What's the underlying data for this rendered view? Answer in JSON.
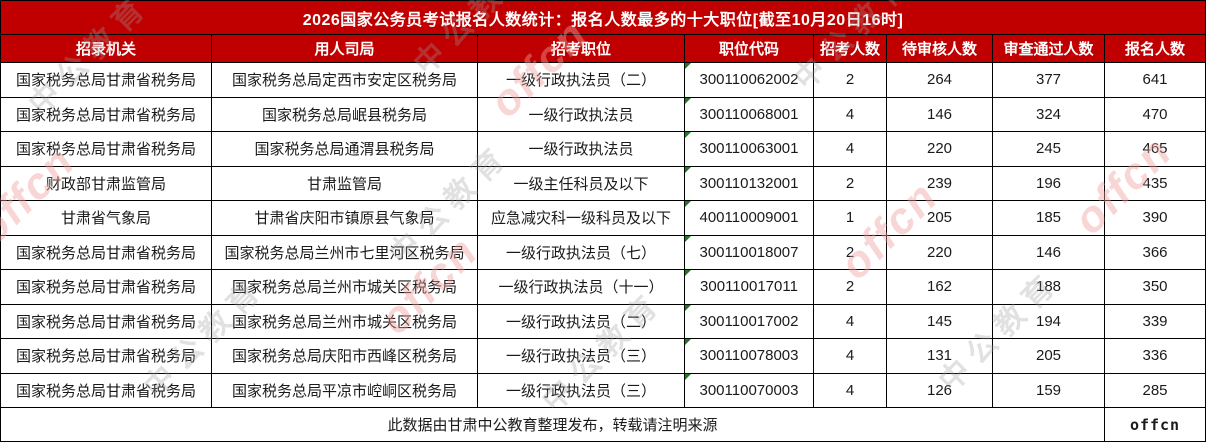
{
  "table": {
    "title": "2026国家公务员考试报名人数统计：报名人数最多的十大职位[截至10月20日16时]",
    "columns": [
      "招录机关",
      "用人司局",
      "招考职位",
      "职位代码",
      "招考人数",
      "待审核人数",
      "审查通过人数",
      "报名人数"
    ],
    "rows": [
      {
        "agency": "国家税务总局甘肃省税务局",
        "bureau": "国家税务总局定西市安定区税务局",
        "position": "一级行政执法员（二）",
        "code": "300110062002",
        "recruit": "2",
        "pending": "264",
        "approved": "377",
        "applied": "641"
      },
      {
        "agency": "国家税务总局甘肃省税务局",
        "bureau": "国家税务总局岷县税务局",
        "position": "一级行政执法员",
        "code": "300110068001",
        "recruit": "4",
        "pending": "146",
        "approved": "324",
        "applied": "470"
      },
      {
        "agency": "国家税务总局甘肃省税务局",
        "bureau": "国家税务总局通渭县税务局",
        "position": "一级行政执法员",
        "code": "300110063001",
        "recruit": "4",
        "pending": "220",
        "approved": "245",
        "applied": "465"
      },
      {
        "agency": "财政部甘肃监管局",
        "bureau": "甘肃监管局",
        "position": "一级主任科员及以下",
        "code": "300110132001",
        "recruit": "2",
        "pending": "239",
        "approved": "196",
        "applied": "435"
      },
      {
        "agency": "甘肃省气象局",
        "bureau": "甘肃省庆阳市镇原县气象局",
        "position": "应急减灾科一级科员及以下",
        "code": "400110009001",
        "recruit": "1",
        "pending": "205",
        "approved": "185",
        "applied": "390"
      },
      {
        "agency": "国家税务总局甘肃省税务局",
        "bureau": "国家税务总局兰州市七里河区税务局",
        "position": "一级行政执法员（七）",
        "code": "300110018007",
        "recruit": "2",
        "pending": "220",
        "approved": "146",
        "applied": "366"
      },
      {
        "agency": "国家税务总局甘肃省税务局",
        "bureau": "国家税务总局兰州市城关区税务局",
        "position": "一级行政执法员（十一）",
        "code": "300110017011",
        "recruit": "2",
        "pending": "162",
        "approved": "188",
        "applied": "350"
      },
      {
        "agency": "国家税务总局甘肃省税务局",
        "bureau": "国家税务总局兰州市城关区税务局",
        "position": "一级行政执法员（二）",
        "code": "300110017002",
        "recruit": "4",
        "pending": "145",
        "approved": "194",
        "applied": "339"
      },
      {
        "agency": "国家税务总局甘肃省税务局",
        "bureau": "国家税务总局庆阳市西峰区税务局",
        "position": "一级行政执法员（三）",
        "code": "300110078003",
        "recruit": "4",
        "pending": "131",
        "approved": "205",
        "applied": "336"
      },
      {
        "agency": "国家税务总局甘肃省税务局",
        "bureau": "国家税务总局平凉市崆峒区税务局",
        "position": "一级行政执法员（三）",
        "code": "300110070003",
        "recruit": "4",
        "pending": "126",
        "approved": "159",
        "applied": "285"
      }
    ],
    "footer_note": "此数据由甘肃中公教育整理发布，转载请注明来源",
    "footer_logo": "offcn"
  },
  "watermark": {
    "brand": "offcn",
    "company": "中公教育"
  },
  "colors": {
    "header_red": "#c00000",
    "logo_red": "#f20000",
    "corner_green": "#1f7a1f",
    "watermark_pink": "#f2a0a0",
    "watermark_gray": "#9f9f9f"
  },
  "chart_data": {
    "type": "table",
    "title": "2026国家公务员考试报名人数统计：报名人数最多的十大职位[截至10月20日16时]",
    "columns": [
      "招录机关",
      "用人司局",
      "招考职位",
      "职位代码",
      "招考人数",
      "待审核人数",
      "审查通过人数",
      "报名人数"
    ],
    "rows": [
      [
        "国家税务总局甘肃省税务局",
        "国家税务总局定西市安定区税务局",
        "一级行政执法员（二）",
        "300110062002",
        2,
        264,
        377,
        641
      ],
      [
        "国家税务总局甘肃省税务局",
        "国家税务总局岷县税务局",
        "一级行政执法员",
        "300110068001",
        4,
        146,
        324,
        470
      ],
      [
        "国家税务总局甘肃省税务局",
        "国家税务总局通渭县税务局",
        "一级行政执法员",
        "300110063001",
        4,
        220,
        245,
        465
      ],
      [
        "财政部甘肃监管局",
        "甘肃监管局",
        "一级主任科员及以下",
        "300110132001",
        2,
        239,
        196,
        435
      ],
      [
        "甘肃省气象局",
        "甘肃省庆阳市镇原县气象局",
        "应急减灾科一级科员及以下",
        "400110009001",
        1,
        205,
        185,
        390
      ],
      [
        "国家税务总局甘肃省税务局",
        "国家税务总局兰州市七里河区税务局",
        "一级行政执法员（七）",
        "300110018007",
        2,
        220,
        146,
        366
      ],
      [
        "国家税务总局甘肃省税务局",
        "国家税务总局兰州市城关区税务局",
        "一级行政执法员（十一）",
        "300110017011",
        2,
        162,
        188,
        350
      ],
      [
        "国家税务总局甘肃省税务局",
        "国家税务总局兰州市城关区税务局",
        "一级行政执法员（二）",
        "300110017002",
        4,
        145,
        194,
        339
      ],
      [
        "国家税务总局甘肃省税务局",
        "国家税务总局庆阳市西峰区税务局",
        "一级行政执法员（三）",
        "300110078003",
        4,
        131,
        205,
        336
      ],
      [
        "国家税务总局甘肃省税务局",
        "国家税务总局平凉市崆峒区税务局",
        "一级行政执法员（三）",
        "300110070003",
        4,
        126,
        159,
        285
      ]
    ],
    "footnote": "此数据由甘肃中公教育整理发布，转载请注明来源"
  }
}
